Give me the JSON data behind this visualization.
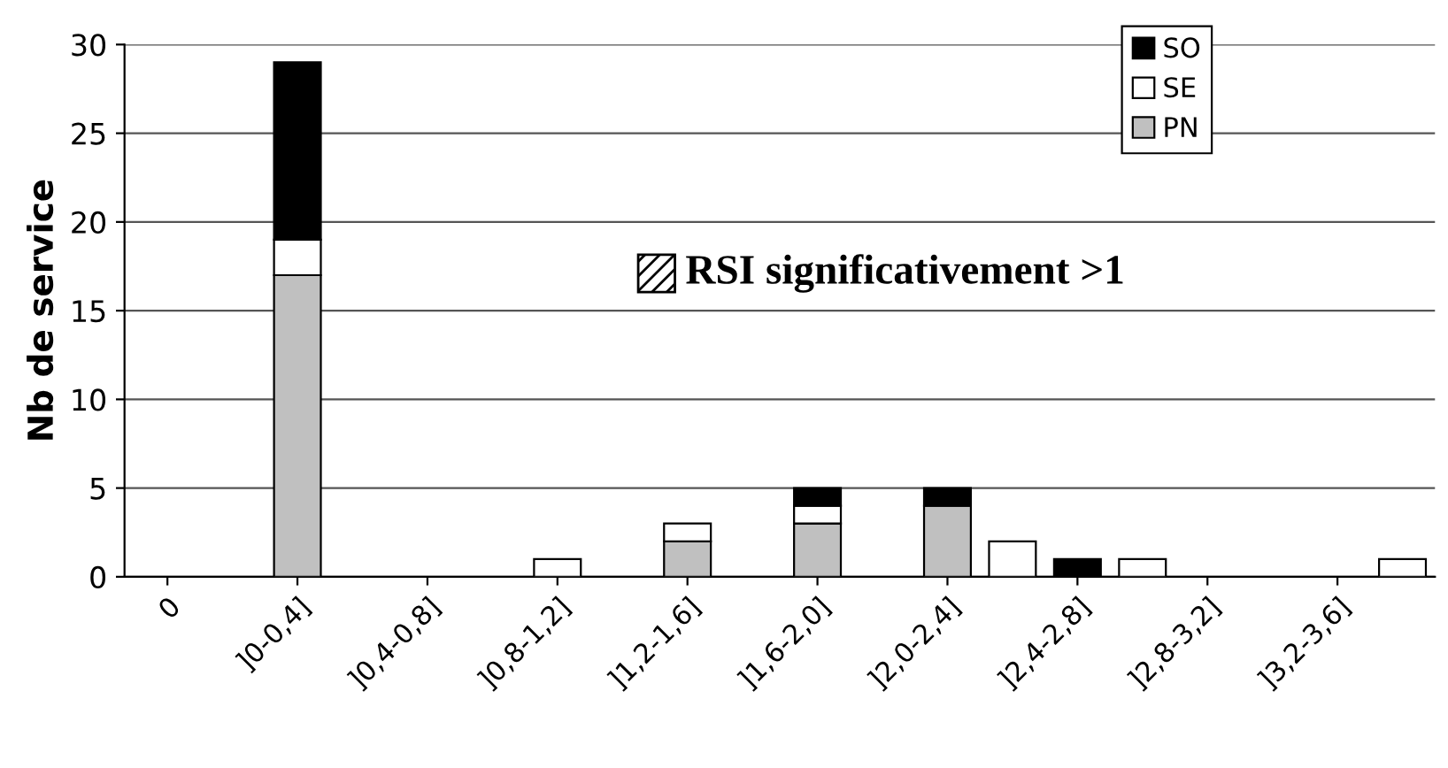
{
  "chart_data": {
    "type": "bar",
    "stacked": true,
    "ylabel": "Nb de service",
    "categories": [
      "0",
      null,
      "]0-0,4]",
      null,
      "]0,4-0,8]",
      null,
      "]0,8-1,2]",
      null,
      "]1,2-1,6]",
      null,
      "]1,6-2,0]",
      null,
      "]2,0-2,4]",
      null,
      "]2,4-2,8]",
      null,
      "]2,8-3,2]",
      null,
      "]3,2-3,6]",
      null
    ],
    "series": [
      {
        "name": "PN",
        "color": "#c0c0c0",
        "values": [
          0,
          0,
          17,
          0,
          0,
          0,
          0,
          0,
          2,
          0,
          3,
          0,
          4,
          0,
          0,
          0,
          0,
          0,
          0,
          0
        ]
      },
      {
        "name": "SE",
        "color": "#ffffff",
        "values": [
          0,
          0,
          2,
          0,
          0,
          0,
          1,
          0,
          1,
          0,
          1,
          0,
          0,
          0,
          0,
          0,
          0,
          0,
          0,
          0
        ]
      },
      {
        "name": "SO",
        "color": "#000000",
        "values": [
          0,
          0,
          10,
          0,
          0,
          0,
          0,
          0,
          0,
          0,
          1,
          0,
          1,
          0,
          1,
          0,
          0,
          0,
          0,
          0
        ]
      },
      {
        "color": "#ffffff",
        "values": [
          0,
          0,
          0,
          0,
          0,
          0,
          0,
          0,
          0,
          0,
          0,
          0,
          0,
          2,
          0,
          1,
          0,
          0,
          0,
          1
        ]
      }
    ],
    "ylim": [
      0,
      30
    ],
    "yticks": [
      0,
      5,
      10,
      15,
      20,
      25,
      30
    ],
    "grid": "y",
    "legend": "top right",
    "annotations": [
      "RSI significativement >1"
    ]
  }
}
